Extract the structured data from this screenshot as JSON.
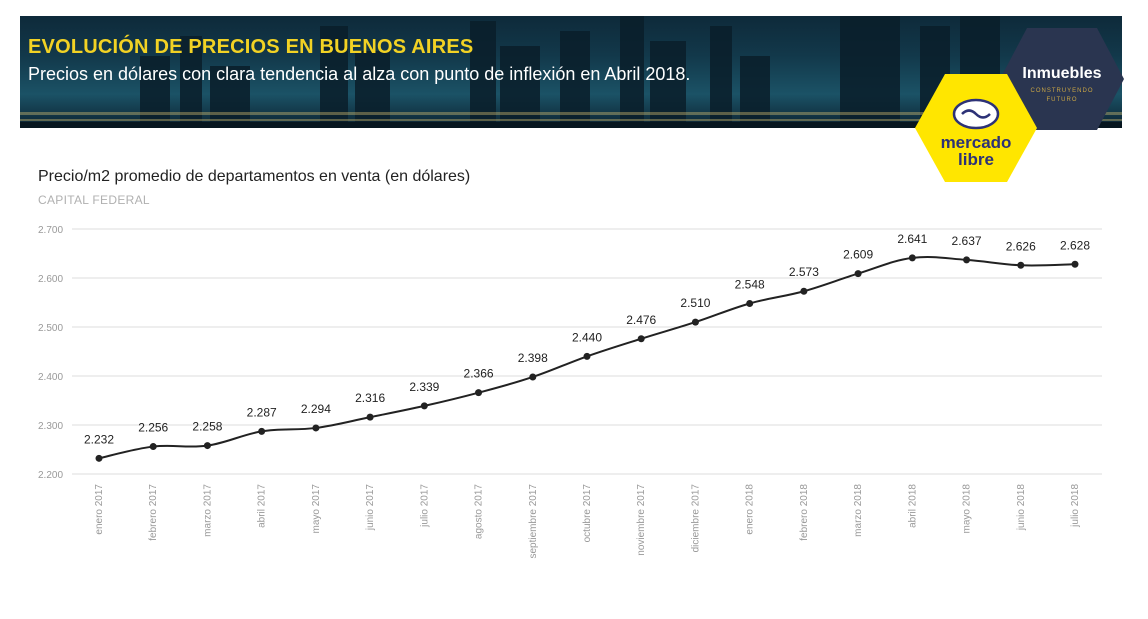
{
  "header": {
    "title": "EVOLUCIÓN DE PRECIOS EN BUENOS AIRES",
    "subtitle": "Precios en dólares con clara tendencia al alza con punto de inflexión en Abril 2018.",
    "inmuebles_logo": {
      "name": "Inmuebles",
      "tagline_1": "CONSTRUYENDO",
      "tagline_2": "FUTURO"
    },
    "mercadolibre_logo": {
      "line_1": "mercado",
      "line_2": "libre"
    }
  },
  "colors": {
    "title": "#f2d224",
    "line": "#222222",
    "grid": "#dddddd",
    "mercadolibre_yellow": "#ffe600",
    "inmuebles_badge": "#2a3550"
  },
  "chart_data": {
    "type": "line",
    "title": "Precio/m2 promedio de departamentos en venta (en dólares)",
    "subtitle": "CAPITAL FEDERAL",
    "xlabel": "",
    "ylabel": "",
    "ylim": [
      2200,
      2700
    ],
    "yticks": [
      2200,
      2300,
      2400,
      2500,
      2600,
      2700
    ],
    "ytick_labels": [
      "2.200",
      "2.300",
      "2.400",
      "2.500",
      "2.600",
      "2.700"
    ],
    "grid": true,
    "categories": [
      "enero 2017",
      "febrero 2017",
      "marzo 2017",
      "abril 2017",
      "mayo 2017",
      "junio 2017",
      "julio 2017",
      "agosto 2017",
      "septiembre 2017",
      "octubre 2017",
      "noviembre 2017",
      "diciembre 2017",
      "enero 2018",
      "febrero 2018",
      "marzo 2018",
      "abril 2018",
      "mayo 2018",
      "junio 2018",
      "julio 2018"
    ],
    "values": [
      2232,
      2256,
      2258,
      2287,
      2294,
      2316,
      2339,
      2366,
      2398,
      2440,
      2476,
      2510,
      2548,
      2573,
      2609,
      2641,
      2637,
      2626,
      2628
    ],
    "value_labels": [
      "2.232",
      "2.256",
      "2.258",
      "2.287",
      "2.294",
      "2.316",
      "2.339",
      "2.366",
      "2.398",
      "2.440",
      "2.476",
      "2.510",
      "2.548",
      "2.573",
      "2.609",
      "2.641",
      "2.637",
      "2.626",
      "2.628"
    ]
  }
}
